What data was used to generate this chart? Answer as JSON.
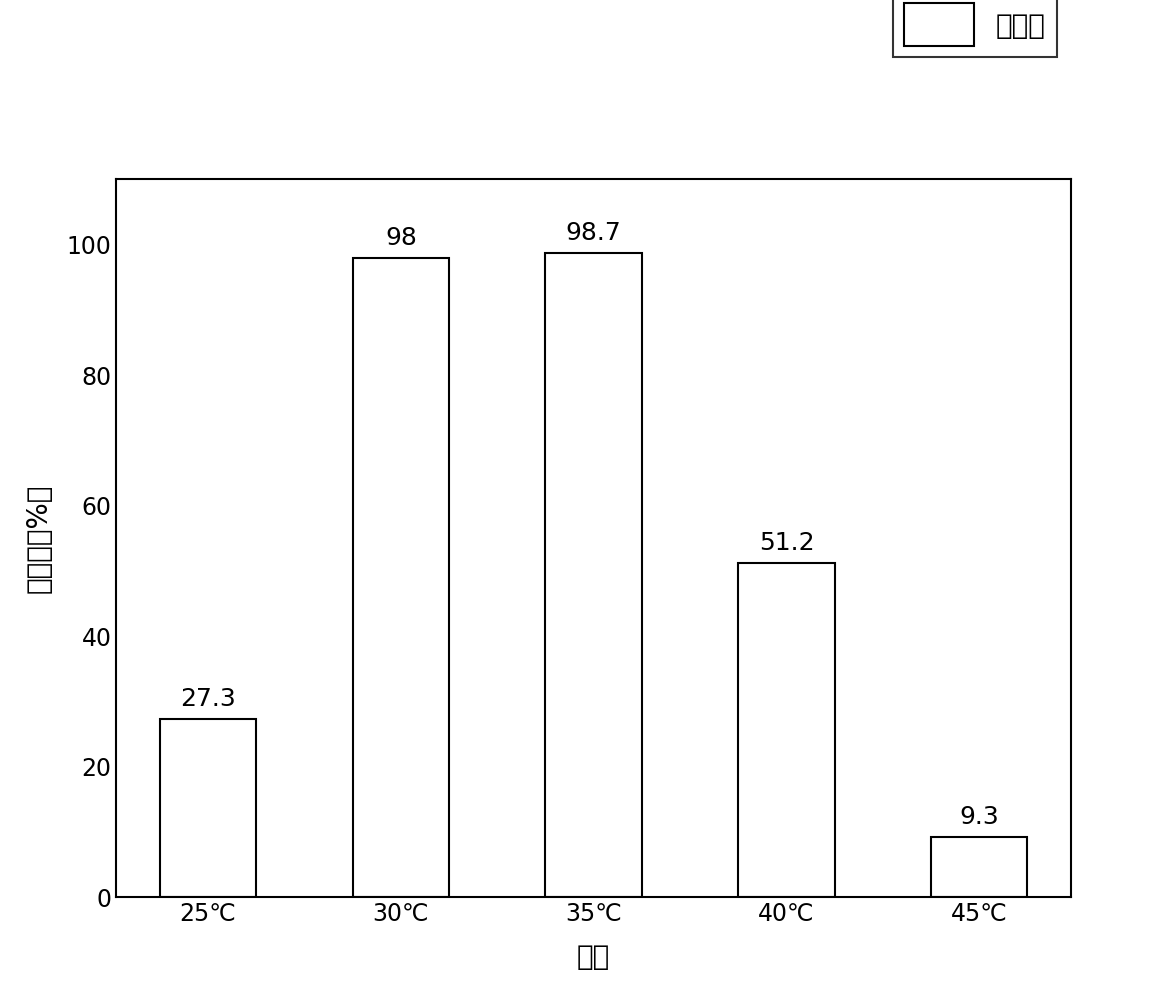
{
  "categories": [
    "25℃",
    "30℃",
    "35℃",
    "40℃",
    "45℃"
  ],
  "values": [
    27.3,
    98.0,
    98.7,
    51.2,
    9.3
  ],
  "bar_color": "#ffffff",
  "bar_edgecolor": "#000000",
  "ylabel": "降解率（%）",
  "xlabel": "温度",
  "ylim": [
    0,
    110
  ],
  "yticks": [
    0,
    20,
    40,
    60,
    80,
    100
  ],
  "legend_label": "降解率",
  "bar_width": 0.5,
  "label_fontsize": 20,
  "tick_fontsize": 17,
  "annot_fontsize": 18,
  "background_color": "#ffffff",
  "linewidth": 1.5
}
